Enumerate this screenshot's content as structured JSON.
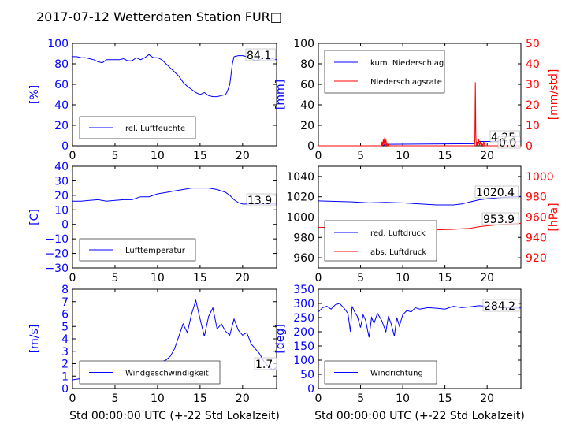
{
  "title": "2017-07-12 Wetterdaten Station FUR□",
  "colors": {
    "left_axis": "#0000ff",
    "right_axis": "#ff0000",
    "line1": "#0000ff",
    "line2": "#ff0000",
    "wind_light": "#7777ff"
  },
  "chart_data": [
    {
      "type": "line",
      "title": "",
      "xlabel": "",
      "ylabel": "[%]",
      "xlim": [
        0,
        24
      ],
      "ylim": [
        0,
        100
      ],
      "xticks": [
        "0",
        "5",
        "10",
        "15",
        "20"
      ],
      "yticks": [
        "0",
        "20",
        "40",
        "60",
        "80",
        "100"
      ],
      "legend_position": "lower-left",
      "last_value_label": "84.1",
      "series": [
        {
          "name": "rel. Luftfeuchte",
          "color": "#0000ff",
          "x": [
            0,
            0.5,
            1,
            1.5,
            2,
            2.5,
            3,
            3.5,
            4,
            4.5,
            5,
            5.5,
            6,
            6.5,
            7,
            7.5,
            8,
            8.5,
            9,
            9.5,
            10,
            10.5,
            11,
            11.5,
            12,
            12.5,
            13,
            13.5,
            14,
            14.5,
            15,
            15.5,
            16,
            16.5,
            17,
            17.5,
            18,
            18.2,
            18.5,
            18.8,
            19,
            19.5,
            20,
            20.5,
            21,
            21.5,
            22,
            22.5,
            23,
            23.5,
            24
          ],
          "values": [
            87,
            87,
            86,
            86,
            85,
            84,
            82,
            81,
            84,
            84,
            84,
            84,
            85,
            83,
            83,
            86,
            84,
            86,
            89,
            86,
            86,
            84,
            80,
            76,
            72,
            68,
            62,
            58,
            55,
            52,
            50,
            52,
            49,
            48,
            48,
            49,
            50,
            53,
            60,
            80,
            87,
            88,
            88,
            87,
            85,
            83,
            84,
            86,
            84,
            85,
            84
          ]
        }
      ]
    },
    {
      "type": "line",
      "title": "",
      "xlabel": "",
      "ylabel": "[mm]",
      "ylabel_right": "[mm/std]",
      "xlim": [
        0,
        24
      ],
      "ylim": [
        0,
        100
      ],
      "ylim_right": [
        0,
        50
      ],
      "xticks": [
        "0",
        "5",
        "10",
        "15",
        "20"
      ],
      "yticks": [
        "0",
        "20",
        "40",
        "60",
        "80",
        "100"
      ],
      "yticks_right": [
        "0",
        "10",
        "20",
        "30",
        "40",
        "50"
      ],
      "legend_position": "upper-left",
      "last_value_labels": [
        "4.25",
        "0.0"
      ],
      "series": [
        {
          "name": "kum. Niederschlag",
          "axis": "left",
          "color": "#0000ff",
          "x": [
            0,
            7.5,
            8,
            18.5,
            19,
            20,
            24
          ],
          "values": [
            0,
            0,
            1.5,
            2,
            4.2,
            4.25,
            4.25
          ]
        },
        {
          "name": "Niederschlagsrate",
          "axis": "right",
          "color": "#ff0000",
          "x": [
            0,
            7.5,
            7.55,
            7.6,
            7.7,
            7.75,
            7.85,
            7.9,
            8,
            8.1,
            8.2,
            8.3,
            18.5,
            18.55,
            18.6,
            18.63,
            18.66,
            18.7,
            18.75,
            18.8,
            18.9,
            19.0,
            19.1,
            19.2,
            19.3,
            19.4,
            19.5,
            19.6,
            19.7,
            24
          ],
          "values": [
            0,
            0,
            2,
            0,
            3,
            0.5,
            4,
            0,
            3,
            0,
            1,
            0,
            0,
            3,
            31,
            20,
            5,
            2,
            0,
            1,
            0,
            3,
            0,
            2,
            0,
            1,
            0,
            2,
            0,
            0
          ]
        }
      ]
    },
    {
      "type": "line",
      "title": "",
      "xlabel": "",
      "ylabel": "[C]",
      "xlim": [
        0,
        24
      ],
      "ylim": [
        -30,
        40
      ],
      "xticks": [
        "0",
        "5",
        "10",
        "15",
        "20"
      ],
      "yticks": [
        "−30",
        "−20",
        "−10",
        "0",
        "10",
        "20",
        "30",
        "40"
      ],
      "legend_position": "lower-left",
      "last_value_label": "13.9",
      "series": [
        {
          "name": "Lufttemperatur",
          "color": "#0000ff",
          "x": [
            0,
            1,
            2,
            3,
            4,
            5,
            6,
            7,
            8,
            9,
            10,
            11,
            12,
            13,
            14,
            15,
            16,
            17,
            18,
            18.5,
            19,
            19.5,
            20,
            21,
            22,
            23,
            24
          ],
          "values": [
            16,
            16,
            16.5,
            17,
            16,
            16.5,
            17,
            17,
            19,
            19,
            21,
            22,
            23,
            24,
            25,
            25,
            25,
            24,
            22,
            20,
            17,
            15,
            14,
            14,
            14,
            14,
            14
          ]
        }
      ]
    },
    {
      "type": "line",
      "title": "",
      "xlabel": "",
      "ylabel": "",
      "ylabel_right": "[hPa]",
      "xlim": [
        0,
        24
      ],
      "ylim": [
        950,
        1050
      ],
      "ylim_right": [
        910,
        1010
      ],
      "xticks": [
        "0",
        "5",
        "10",
        "15",
        "20"
      ],
      "yticks": [
        "960",
        "980",
        "1000",
        "1020",
        "1040"
      ],
      "yticks_right": [
        "920",
        "940",
        "960",
        "980",
        "1000"
      ],
      "legend_position": "lower-left",
      "last_value_labels": [
        "1020.4",
        "953.9"
      ],
      "series": [
        {
          "name": "red. Luftdruck",
          "axis": "left",
          "color": "#0000ff",
          "x": [
            0,
            2,
            4,
            6,
            8,
            10,
            12,
            14,
            16,
            17,
            18,
            19,
            20,
            22,
            24
          ],
          "values": [
            1016,
            1015.5,
            1015,
            1014,
            1014.5,
            1014,
            1013,
            1012,
            1012,
            1013,
            1015,
            1017,
            1018,
            1019.5,
            1020.4
          ]
        },
        {
          "name": "abs. Luftdruck",
          "axis": "right",
          "color": "#ff0000",
          "x": [
            0,
            2,
            4,
            6,
            8,
            10,
            12,
            14,
            16,
            17,
            18,
            19,
            20,
            22,
            24
          ],
          "values": [
            950,
            949.5,
            949,
            948.5,
            948.5,
            948,
            947.5,
            947.5,
            948,
            948.5,
            949,
            950.5,
            951.5,
            953,
            953.9
          ]
        }
      ]
    },
    {
      "type": "line",
      "title": "",
      "xlabel": "Std 00:00:00 UTC (+-22 Std Lokalzeit)",
      "ylabel": "[m/s]",
      "xlim": [
        0,
        24
      ],
      "ylim": [
        0,
        8
      ],
      "xticks": [
        "0",
        "5",
        "10",
        "15",
        "20"
      ],
      "yticks": [
        "0",
        "1",
        "2",
        "3",
        "4",
        "5",
        "6",
        "7",
        "8"
      ],
      "legend_position": "lower-left",
      "last_value_label": "1.7",
      "series": [
        {
          "name": "Windgeschwindigkeit",
          "color": "#0000ff",
          "x": [
            0,
            1,
            2,
            3,
            4,
            5,
            6,
            7,
            8,
            9,
            10,
            11,
            11.5,
            12,
            12.5,
            13,
            13.5,
            14,
            14.5,
            15,
            15.5,
            16,
            16.5,
            17,
            17.5,
            18,
            18.5,
            19,
            19.5,
            20,
            20.5,
            21,
            21.5,
            22,
            22.5,
            23,
            23.5,
            24
          ],
          "values": [
            0.7,
            0.8,
            1.0,
            0.9,
            0.5,
            0.9,
            1.2,
            1.5,
            1.9,
            1.8,
            2.0,
            2.3,
            2.6,
            3.2,
            4.2,
            5.2,
            4.5,
            6.0,
            7.1,
            5.6,
            4.2,
            5.8,
            6.5,
            4.8,
            5.2,
            4.6,
            4.3,
            5.6,
            4.7,
            4.3,
            4.5,
            3.6,
            3.2,
            2.8,
            2.2,
            1.8,
            1.5,
            1.7
          ]
        }
      ]
    },
    {
      "type": "line",
      "title": "",
      "xlabel": "Std 00:00:00 UTC (+-22 Std Lokalzeit)",
      "ylabel": "[deg]",
      "xlim": [
        0,
        24
      ],
      "ylim": [
        0,
        350
      ],
      "xticks": [
        "0",
        "5",
        "10",
        "15",
        "20"
      ],
      "yticks": [
        "0",
        "50",
        "100",
        "150",
        "200",
        "250",
        "300",
        "350"
      ],
      "legend_position": "lower-left",
      "last_value_label": "284.2",
      "series": [
        {
          "name": "Windrichtung",
          "color": "#0000ff",
          "x": [
            0,
            0.5,
            1,
            1.5,
            2,
            2.5,
            3,
            3.5,
            3.8,
            4,
            4.3,
            4.6,
            5,
            5.3,
            5.6,
            6,
            6.3,
            6.6,
            7,
            7.5,
            8,
            8.3,
            8.6,
            9,
            9.3,
            9.6,
            10,
            10.5,
            11,
            11.5,
            12,
            13,
            14,
            15,
            16,
            17,
            18,
            19,
            20,
            21,
            22,
            23,
            24
          ],
          "values": [
            270,
            285,
            290,
            280,
            295,
            300,
            285,
            265,
            200,
            290,
            270,
            255,
            215,
            260,
            240,
            180,
            250,
            230,
            265,
            240,
            200,
            255,
            230,
            185,
            250,
            220,
            260,
            275,
            270,
            285,
            280,
            285,
            283,
            280,
            290,
            285,
            288,
            292,
            290,
            287,
            285,
            283,
            284
          ]
        }
      ]
    }
  ]
}
